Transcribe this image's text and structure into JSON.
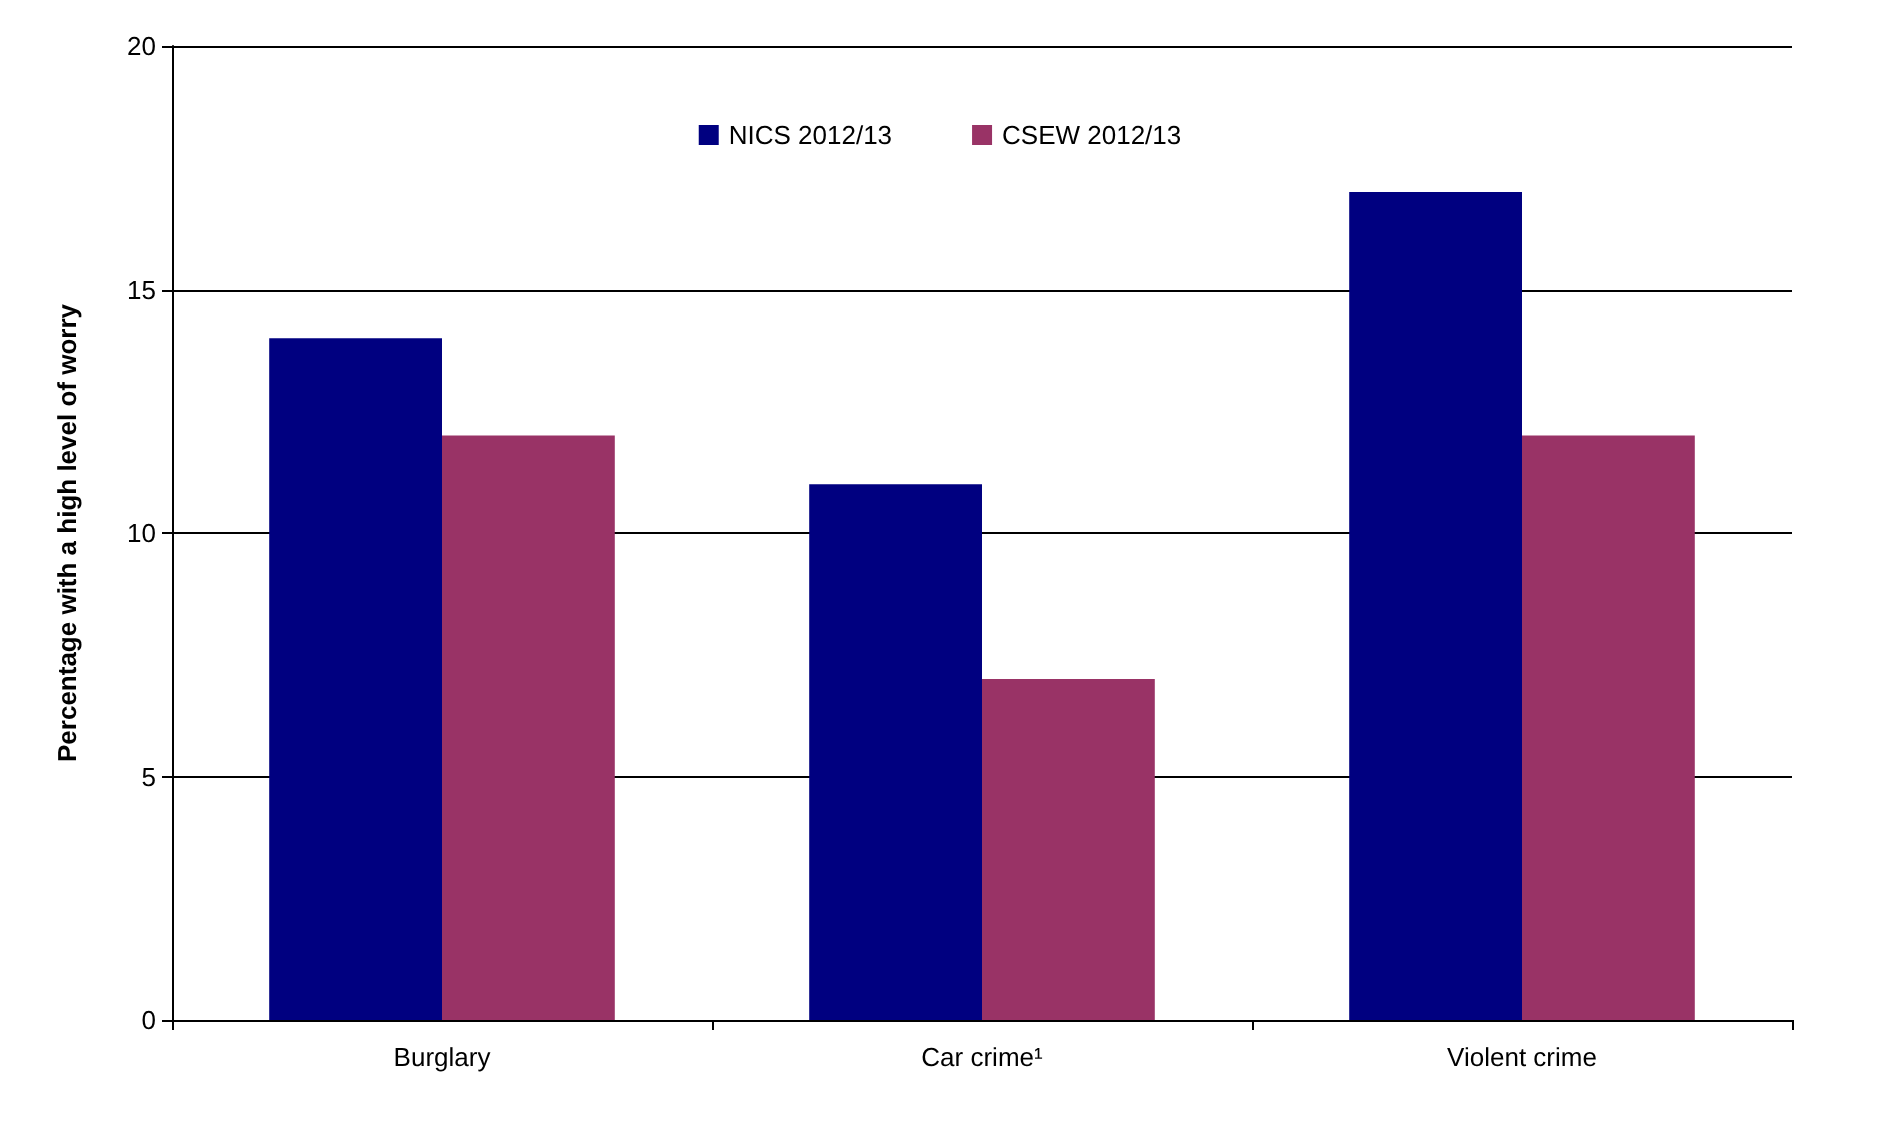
{
  "chart_data": {
    "type": "bar",
    "ylabel": "Percentage with a high level of worry",
    "categories": [
      "Burglary",
      "Car crime¹",
      "Violent crime"
    ],
    "series": [
      {
        "name": "NICS 2012/13",
        "color": "#000080",
        "values": [
          14,
          11,
          17
        ]
      },
      {
        "name": "CSEW 2012/13",
        "color": "#993366",
        "values": [
          12,
          7,
          12
        ]
      }
    ],
    "ylim": [
      0,
      20
    ],
    "yticks": [
      0,
      5,
      10,
      15,
      20
    ],
    "grid": "y",
    "legend": "top"
  }
}
